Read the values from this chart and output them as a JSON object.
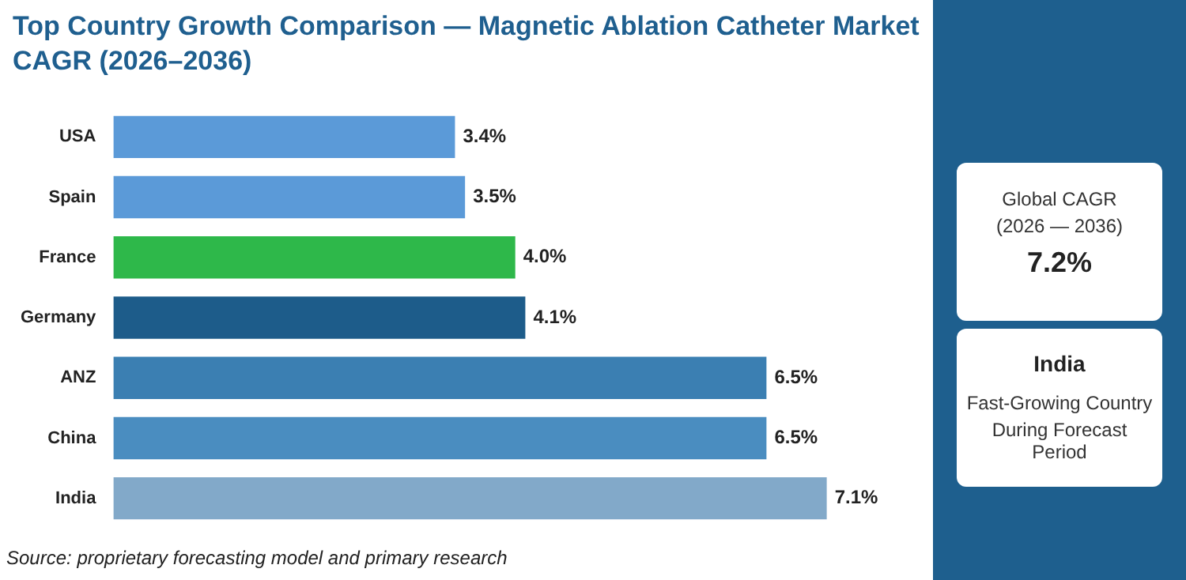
{
  "chart_data": {
    "type": "bar",
    "orientation": "horizontal",
    "title": "Top Country Growth Comparison — Magnetic Ablation Catheter Market CAGR (2026–2036)",
    "categories": [
      "USA",
      "Spain",
      "France",
      "Germany",
      "ANZ",
      "China",
      "India"
    ],
    "values": [
      3.4,
      3.5,
      4.0,
      4.1,
      6.5,
      6.5,
      7.1
    ],
    "colors": [
      "#5b9ad8",
      "#5b9ad8",
      "#2eb84a",
      "#1d5c8a",
      "#3b7fb2",
      "#4a8dc0",
      "#82a9c9"
    ],
    "value_labels": [
      "3.4%",
      "3.5%",
      "4.0%",
      "4.1%",
      "6.5%",
      "6.5%",
      "7.1%"
    ],
    "legend": false,
    "tick_labels": "y",
    "annotations": [
      "Source: proprietary forecasting model and primary research",
      "Global CAGR",
      "(2026 — 2036)",
      "7.2%",
      "India",
      "Fast-Growing Country",
      "During Forecast Period"
    ]
  }
}
